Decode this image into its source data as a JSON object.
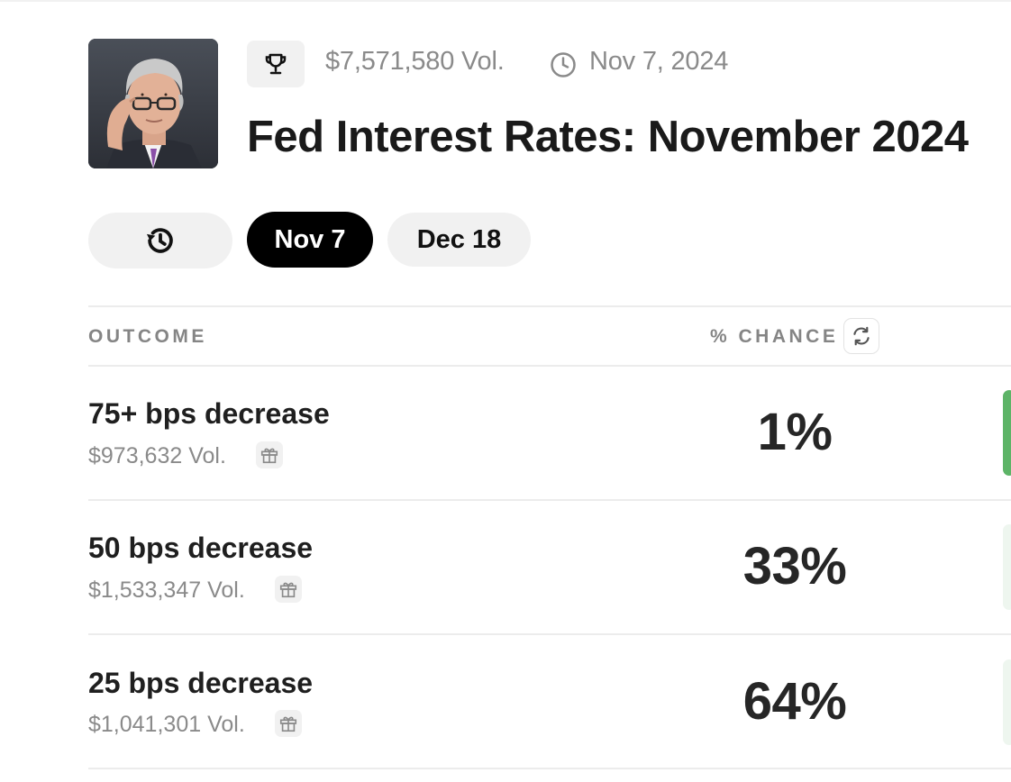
{
  "header": {
    "avatar_alt": "Jerome Powell portrait",
    "trophy_icon": "trophy-icon",
    "volume": "$7,571,580 Vol.",
    "clock_icon": "clock-icon",
    "date": "Nov 7, 2024",
    "title": "Fed Interest Rates: November 2024"
  },
  "tabs": [
    {
      "icon": "history-icon",
      "label": "",
      "selected": false
    },
    {
      "label": "Nov 7",
      "selected": true
    },
    {
      "label": "Dec 18",
      "selected": false
    }
  ],
  "table": {
    "col_outcome": "OUTCOME",
    "col_chance": "% CHANCE",
    "refresh_icon": "refresh-icon",
    "rows": [
      {
        "name": "75+ bps decrease",
        "volume": "$973,632 Vol.",
        "chance": "1%",
        "gift_icon": "gift-icon",
        "bar_color": "#5db467"
      },
      {
        "name": "50 bps decrease",
        "volume": "$1,533,347 Vol.",
        "chance": "33%",
        "gift_icon": "gift-icon",
        "bar_color": "#eef6ef"
      },
      {
        "name": "25 bps decrease",
        "volume": "$1,041,301 Vol.",
        "chance": "64%",
        "gift_icon": "gift-icon",
        "bar_color": "#eef6ef"
      }
    ]
  },
  "colors": {
    "accent_green": "#5db467",
    "pill_active_bg": "#000000",
    "pill_bg": "#f1f1f1",
    "muted_text": "#8a8a8a"
  }
}
